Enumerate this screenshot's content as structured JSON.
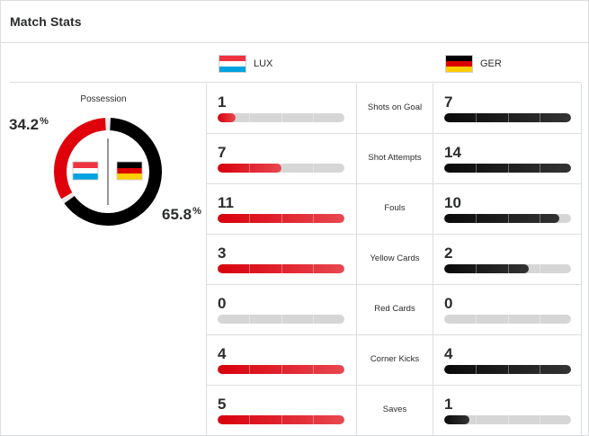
{
  "title": "Match Stats",
  "teams": {
    "home": {
      "abbr": "LUX",
      "flag": [
        "#ef3340",
        "#ffffff",
        "#00a3e0"
      ],
      "color": "#d8000c"
    },
    "away": {
      "abbr": "GER",
      "flag": [
        "#000000",
        "#dd0000",
        "#ffce00"
      ],
      "color": "#111111"
    }
  },
  "possession": {
    "title": "Possession",
    "home": {
      "value": "34.2",
      "unit": "%",
      "fraction": 0.342
    },
    "away": {
      "value": "65.8",
      "unit": "%",
      "fraction": 0.658
    }
  },
  "stats": [
    {
      "label": "Shots on Goal",
      "home": 1,
      "away": 7,
      "home_fill": 0.14,
      "away_fill": 1.0
    },
    {
      "label": "Shot Attempts",
      "home": 7,
      "away": 14,
      "home_fill": 0.5,
      "away_fill": 1.0
    },
    {
      "label": "Fouls",
      "home": 11,
      "away": 10,
      "home_fill": 1.0,
      "away_fill": 0.91
    },
    {
      "label": "Yellow Cards",
      "home": 3,
      "away": 2,
      "home_fill": 1.0,
      "away_fill": 0.667
    },
    {
      "label": "Red Cards",
      "home": 0,
      "away": 0,
      "home_fill": 0,
      "away_fill": 0
    },
    {
      "label": "Corner Kicks",
      "home": 4,
      "away": 4,
      "home_fill": 1.0,
      "away_fill": 1.0
    },
    {
      "label": "Saves",
      "home": 5,
      "away": 1,
      "home_fill": 1.0,
      "away_fill": 0.2
    }
  ]
}
